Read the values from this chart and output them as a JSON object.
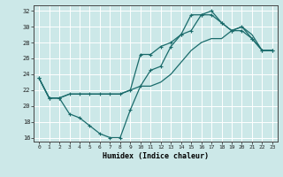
{
  "xlabel": "Humidex (Indice chaleur)",
  "bg_color": "#cce8e8",
  "grid_color": "#ffffff",
  "line_color": "#1a6b6b",
  "xlim": [
    -0.5,
    23.5
  ],
  "ylim": [
    15.5,
    32.7
  ],
  "xticks": [
    0,
    1,
    2,
    3,
    4,
    5,
    6,
    7,
    8,
    9,
    10,
    11,
    12,
    13,
    14,
    15,
    16,
    17,
    18,
    19,
    20,
    21,
    22,
    23
  ],
  "yticks": [
    16,
    18,
    20,
    22,
    24,
    26,
    28,
    30,
    32
  ],
  "line1_x": [
    0,
    1,
    2,
    3,
    4,
    5,
    6,
    7,
    8,
    9,
    10,
    11,
    12,
    13,
    14,
    15,
    16,
    17,
    18,
    19,
    20,
    21,
    22,
    23
  ],
  "line1_y": [
    23.5,
    21.0,
    21.0,
    21.5,
    21.5,
    21.5,
    21.5,
    21.5,
    21.5,
    22.0,
    22.5,
    22.5,
    23.0,
    24.0,
    25.5,
    27.0,
    28.0,
    28.5,
    28.5,
    29.5,
    30.0,
    29.0,
    27.0,
    27.0
  ],
  "line2_x": [
    0,
    1,
    2,
    3,
    4,
    5,
    6,
    7,
    8,
    9,
    10,
    11,
    12,
    13,
    14,
    15,
    16,
    17,
    18,
    19,
    20,
    21,
    22,
    23
  ],
  "line2_y": [
    23.5,
    21.0,
    21.0,
    19.0,
    18.5,
    17.5,
    16.5,
    16.0,
    16.0,
    19.5,
    22.5,
    24.5,
    25.0,
    27.5,
    29.0,
    29.5,
    31.5,
    31.5,
    30.5,
    29.5,
    29.5,
    28.5,
    27.0,
    27.0
  ],
  "line3_x": [
    0,
    1,
    2,
    3,
    4,
    5,
    6,
    7,
    8,
    9,
    10,
    11,
    12,
    13,
    14,
    15,
    16,
    17,
    18,
    19,
    20,
    21,
    22,
    23
  ],
  "line3_y": [
    23.5,
    21.0,
    21.0,
    21.5,
    21.5,
    21.5,
    21.5,
    21.5,
    21.5,
    22.0,
    26.5,
    26.5,
    27.5,
    28.0,
    29.0,
    31.5,
    31.5,
    32.0,
    30.5,
    29.5,
    30.0,
    28.5,
    27.0,
    27.0
  ]
}
